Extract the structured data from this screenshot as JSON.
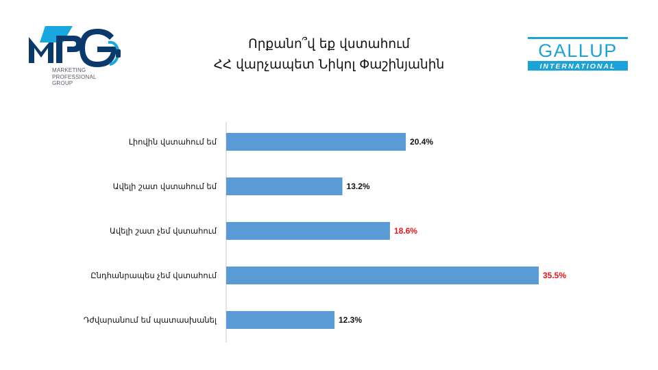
{
  "logos": {
    "mpg": {
      "mark": "MPG",
      "subtitle": [
        "MARKETING",
        "PROFESSIONAL",
        "GROUP"
      ]
    },
    "gallup": {
      "name": "GALLUP",
      "band": "INTERNATIONAL"
    }
  },
  "title": {
    "line1": "Որքանո՞վ եք վստահում",
    "line2": "ՀՀ վարչապետ Նիկոլ Փաշինյանին"
  },
  "colors": {
    "bar": "#5b9bd5",
    "highlight_label": "#e8141c",
    "label": "#111111",
    "axis": "#c8c8c8"
  },
  "chart_data": {
    "type": "bar",
    "orientation": "horizontal",
    "categories": [
      "Լիովին վստահում եմ",
      "Ավելի շատ վստահում եմ",
      "Ավելի շատ չեմ վստահում",
      "Ընդհանրապես չեմ վստահում",
      "Դժվարանում եմ պատասխանել"
    ],
    "values": [
      20.4,
      13.2,
      18.6,
      35.5,
      12.3
    ],
    "value_labels": [
      "20.4%",
      "13.2%",
      "18.6%",
      "35.5%",
      "12.3%"
    ],
    "highlighted": [
      false,
      false,
      true,
      true,
      false
    ],
    "xlim": [
      0,
      40
    ],
    "grid": false,
    "legend": "none"
  }
}
